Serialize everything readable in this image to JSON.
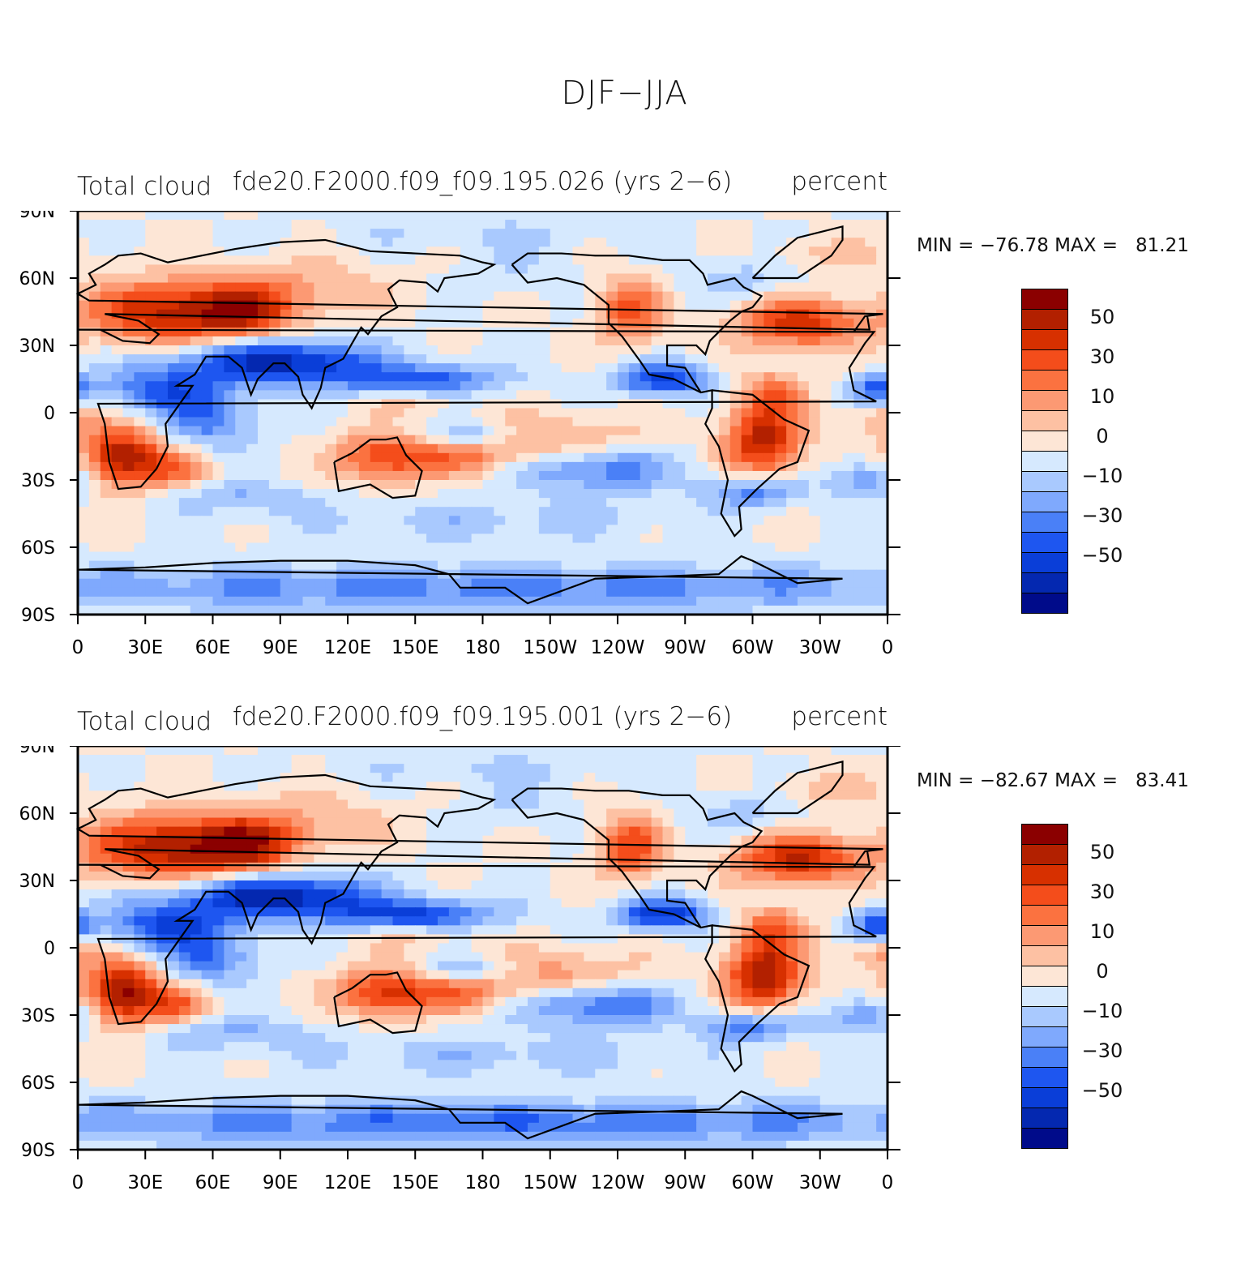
{
  "figure": {
    "title": "DJF−JJA",
    "colorbar": {
      "colors": [
        "#8b0000",
        "#b22000",
        "#d73000",
        "#f44d1b",
        "#fb7240",
        "#fc9973",
        "#fdc1a3",
        "#fde6d6",
        "#d6e9fe",
        "#a9c9fe",
        "#7fa9fd",
        "#4a80f7",
        "#1e56f0",
        "#0a3ed8",
        "#0428b0",
        "#000b8a"
      ],
      "tick_labels": [
        "50",
        "30",
        "10",
        "0",
        "−10",
        "−30",
        "−50"
      ]
    },
    "x_ticks": [
      "0",
      "30E",
      "60E",
      "90E",
      "120E",
      "150E",
      "180",
      "150W",
      "120W",
      "90W",
      "60W",
      "30W",
      "0"
    ],
    "y_ticks": [
      "90N",
      "60N",
      "30N",
      "0",
      "30S",
      "60S",
      "90S"
    ]
  },
  "chart_data": [
    {
      "type": "heatmap",
      "title": "fde20.F2000.f09_f09.195.026 (yrs 2−6)",
      "variable": "Total cloud",
      "units": "percent",
      "min_label": "MIN = −76.78",
      "max_label": "MAX =   81.21",
      "min": -76.78,
      "max": 81.21,
      "xlim": [
        0,
        360
      ],
      "ylim": [
        -90,
        90
      ]
    },
    {
      "type": "heatmap",
      "title": "fde20.F2000.f09_f09.195.001 (yrs 2−6)",
      "variable": "Total cloud",
      "units": "percent",
      "min_label": "MIN = −82.67",
      "max_label": "MAX =   83.41",
      "min": -82.67,
      "max": 83.41,
      "xlim": [
        0,
        360
      ],
      "ylim": [
        -90,
        90
      ]
    }
  ]
}
